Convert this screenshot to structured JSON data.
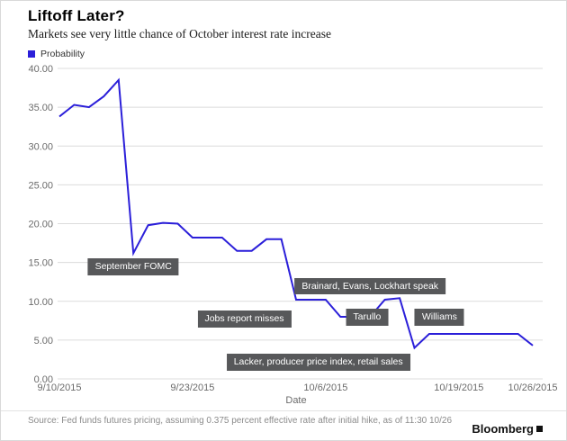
{
  "header": {
    "title": "Liftoff Later?",
    "subtitle": "Markets see very little chance of October interest rate increase"
  },
  "legend": {
    "label": "Probability",
    "color": "#2b1fd9"
  },
  "chart_data": {
    "type": "line",
    "title": "Liftoff Later?",
    "series_name": "Probability",
    "xlabel": "Date",
    "ylabel": "",
    "ylim": [
      0,
      40
    ],
    "grid": "horizontal",
    "line_color": "#2b1fd9",
    "y_ticks": [
      0,
      5,
      10,
      15,
      20,
      25,
      30,
      35,
      40
    ],
    "y_tick_labels": [
      "0.00",
      "5.00",
      "10.00",
      "15.00",
      "20.00",
      "25.00",
      "30.00",
      "35.00",
      "40.00"
    ],
    "x": [
      "9/10/2015",
      "9/11/2015",
      "9/14/2015",
      "9/15/2015",
      "9/16/2015",
      "9/17/2015",
      "9/18/2015",
      "9/21/2015",
      "9/22/2015",
      "9/23/2015",
      "9/24/2015",
      "9/25/2015",
      "9/28/2015",
      "9/29/2015",
      "9/30/2015",
      "10/1/2015",
      "10/2/2015",
      "10/5/2015",
      "10/6/2015",
      "10/7/2015",
      "10/8/2015",
      "10/9/2015",
      "10/12/2015",
      "10/13/2015",
      "10/14/2015",
      "10/15/2015",
      "10/16/2015",
      "10/19/2015",
      "10/20/2015",
      "10/21/2015",
      "10/22/2015",
      "10/23/2015",
      "10/26/2015"
    ],
    "values": [
      33.8,
      35.3,
      35.0,
      36.4,
      38.5,
      16.2,
      19.8,
      20.1,
      20.0,
      18.2,
      18.2,
      18.2,
      16.5,
      16.5,
      18.0,
      18.0,
      10.2,
      10.2,
      10.2,
      8.0,
      8.0,
      8.0,
      10.2,
      10.4,
      4.0,
      5.8,
      5.8,
      5.8,
      5.8,
      5.8,
      5.8,
      5.8,
      4.3
    ],
    "x_tick_indices": [
      0,
      9,
      18,
      27,
      32
    ],
    "x_tick_labels": [
      "9/10/2015",
      "9/23/2015",
      "10/6/2015",
      "10/19/2015",
      "10/26/2015"
    ],
    "annotations": [
      {
        "text": "September FOMC",
        "xi": 5,
        "y_top_value": 15.5
      },
      {
        "text": "Jobs report misses",
        "xi": 12.5,
        "y_top_value": 8.8
      },
      {
        "text": "Brainard, Evans, Lockhart speak",
        "xi": 21,
        "y_top_value": 13.0
      },
      {
        "text": "Tarullo",
        "xi": 20.8,
        "y_top_value": 9.0
      },
      {
        "text": "Williams",
        "xi": 25.7,
        "y_top_value": 9.0
      },
      {
        "text": "Lacker, producer price index, retail sales",
        "xi": 17.5,
        "y_top_value": 3.2
      }
    ]
  },
  "footer": {
    "source": "Source: Fed funds futures pricing, assuming 0.375 percent effective rate after initial hike, as of 11:30 10/26",
    "brand": "Bloomberg"
  }
}
